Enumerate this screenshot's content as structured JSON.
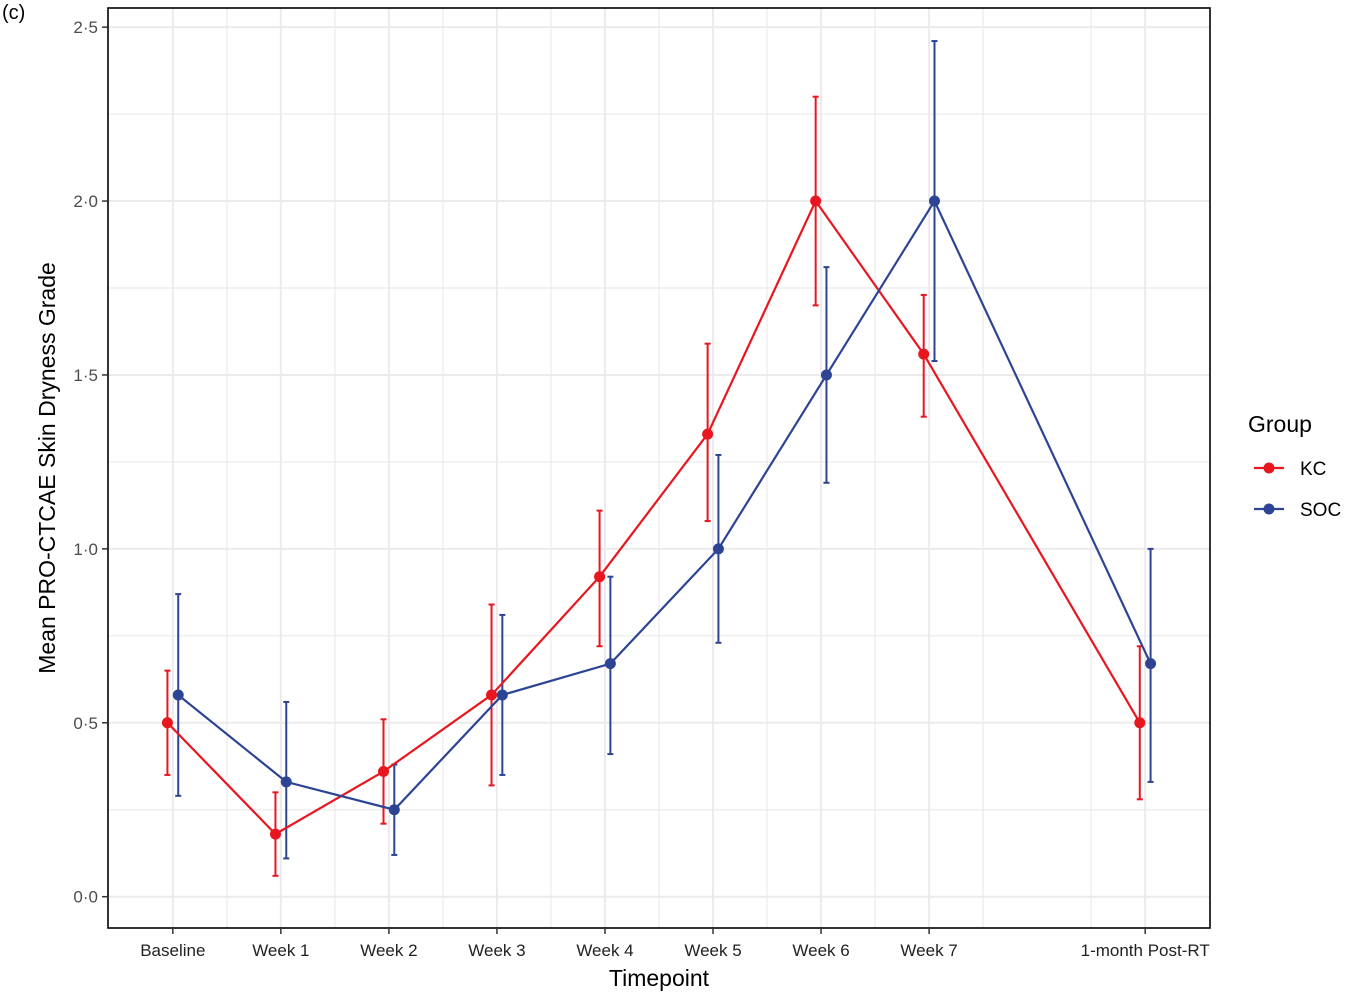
{
  "panel_label": "(c)",
  "colors": {
    "KC": "#e8161f",
    "SOC": "#2d4494",
    "grid": "#ebebeb",
    "axis": "#000000"
  },
  "chart_data": {
    "type": "line",
    "title": "",
    "xlabel": "Timepoint",
    "ylabel": "Mean PRO-CTCAE Skin Dryness Grade",
    "ylim": [
      0,
      2.5
    ],
    "y_ticks": [
      0.0,
      0.5,
      1.0,
      1.5,
      2.0,
      2.5
    ],
    "y_tick_labels": [
      "0·0",
      "0·5",
      "1·0",
      "1·5",
      "2·0",
      "2·5"
    ],
    "categories": [
      "Baseline",
      "Week 1",
      "Week 2",
      "Week 3",
      "Week 4",
      "Week 5",
      "Week 6",
      "Week 7",
      "1-month Post-RT"
    ],
    "category_positions": [
      1,
      2,
      3,
      4,
      5,
      6,
      7,
      8,
      10
    ],
    "xlim": [
      0.4,
      10.6
    ],
    "grid": true,
    "legend": {
      "title": "Group",
      "placement": "right"
    },
    "series": [
      {
        "name": "KC",
        "color": "#e8161f",
        "dodge": -0.05,
        "values": [
          0.5,
          0.18,
          0.36,
          0.58,
          0.92,
          1.33,
          2.0,
          1.56,
          0.5
        ],
        "lower": [
          0.35,
          0.06,
          0.21,
          0.32,
          0.72,
          1.08,
          1.7,
          1.38,
          0.28
        ],
        "upper": [
          0.65,
          0.3,
          0.51,
          0.84,
          1.11,
          1.59,
          2.3,
          1.73,
          0.72
        ]
      },
      {
        "name": "SOC",
        "color": "#2d4494",
        "dodge": 0.05,
        "values": [
          0.58,
          0.33,
          0.25,
          0.58,
          0.67,
          1.0,
          1.5,
          2.0,
          0.67
        ],
        "lower": [
          0.29,
          0.11,
          0.12,
          0.35,
          0.41,
          0.73,
          1.19,
          1.54,
          0.33
        ],
        "upper": [
          0.87,
          0.56,
          0.38,
          0.81,
          0.92,
          1.27,
          1.81,
          2.46,
          1.0
        ]
      }
    ]
  }
}
